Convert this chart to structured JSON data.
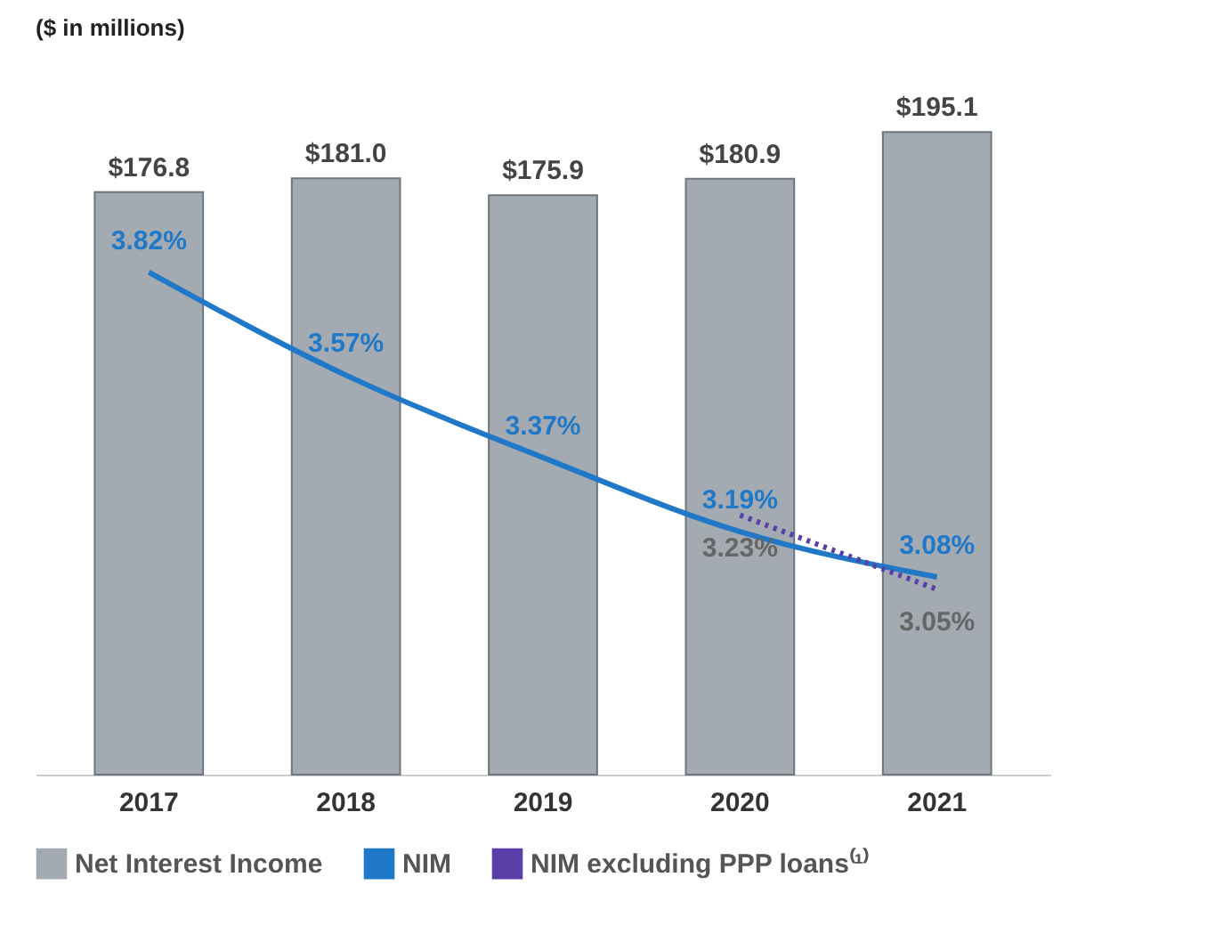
{
  "chart_data": {
    "type": "bar",
    "categories": [
      "2017",
      "2018",
      "2019",
      "2020",
      "2021"
    ],
    "series": [
      {
        "name": "Net Interest Income",
        "color": "#a3aab1",
        "values": [
          176.8,
          181.0,
          175.9,
          180.9,
          195.1
        ],
        "value_labels": [
          "$176.8",
          "$181.0",
          "$175.9",
          "$180.9",
          "$195.1"
        ]
      },
      {
        "name": "NIM",
        "type": "line",
        "axis": "y2",
        "color": "#1f78c8",
        "values": [
          3.82,
          3.57,
          3.37,
          3.19,
          3.08
        ],
        "value_labels": [
          "3.82%",
          "3.57%",
          "3.37%",
          "3.19%",
          "3.08%"
        ]
      },
      {
        "name": "NIM excluding PPP loans⁽¹⁾",
        "type": "line",
        "axis": "y2",
        "color": "#5b3fa8",
        "line_style": "dotted",
        "values": [
          null,
          null,
          null,
          3.23,
          3.05
        ],
        "value_labels": [
          null,
          null,
          null,
          "3.23%",
          "3.05%"
        ]
      }
    ],
    "annotations": [
      "($ in millions)"
    ],
    "legend": "bottom",
    "tick_labels": "x"
  }
}
